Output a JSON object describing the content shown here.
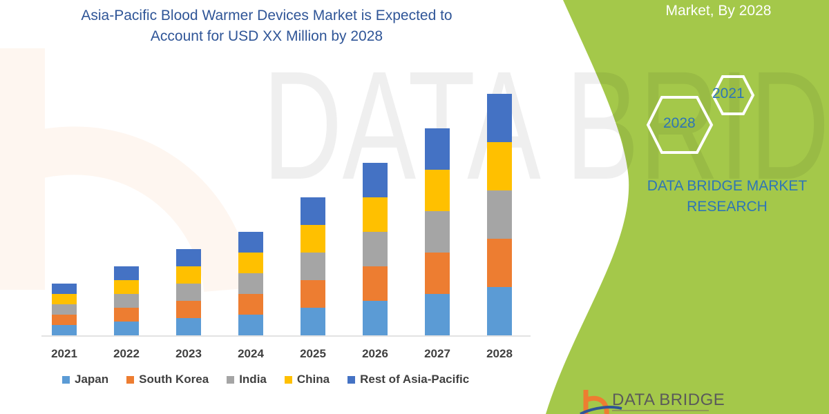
{
  "title": {
    "line1": "Asia-Pacific Blood Warmer Devices Market is Expected to",
    "line2": "Account for USD XX Million by 2028"
  },
  "side_panel": {
    "subtitle": "Market, By 2028",
    "hex_years": [
      "2021",
      "2028"
    ],
    "brand_line1": "DATA BRIDGE MARKET",
    "brand_line2": "RESEARCH",
    "logo_text": "DATA BRIDGE",
    "watermark": "DATA BRIDGE MARKET RESEARCH",
    "panel_color": "#a4c84a"
  },
  "chart_data": {
    "type": "bar",
    "stacked": true,
    "title": "",
    "xlabel": "",
    "ylabel": "",
    "y_axis_shown": false,
    "grid": false,
    "legend_position": "bottom",
    "ylim": [
      0,
      360
    ],
    "categories": [
      "2021",
      "2022",
      "2023",
      "2024",
      "2025",
      "2026",
      "2027",
      "2028"
    ],
    "series": [
      {
        "name": "Japan",
        "color": "#5b9bd5",
        "values": [
          15,
          20,
          25,
          30,
          40,
          50,
          60,
          70
        ]
      },
      {
        "name": "South Korea",
        "color": "#ed7d31",
        "values": [
          15,
          20,
          25,
          30,
          40,
          50,
          60,
          70
        ]
      },
      {
        "name": "India",
        "color": "#a5a5a5",
        "values": [
          15,
          20,
          25,
          30,
          40,
          50,
          60,
          70
        ]
      },
      {
        "name": "China",
        "color": "#ffc000",
        "values": [
          15,
          20,
          25,
          30,
          40,
          50,
          60,
          70
        ]
      },
      {
        "name": "Rest of Asia-Pacific",
        "color": "#4472c4",
        "values": [
          15,
          20,
          25,
          30,
          40,
          50,
          60,
          70
        ]
      }
    ]
  }
}
